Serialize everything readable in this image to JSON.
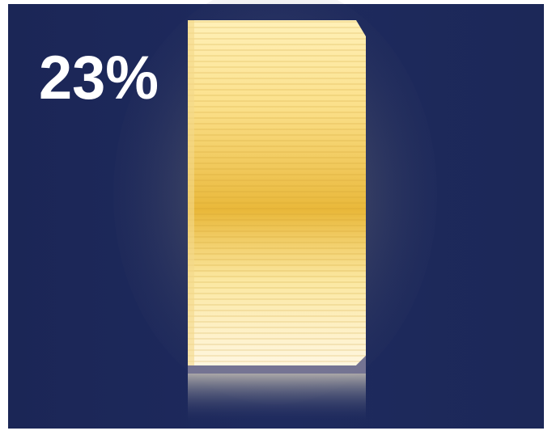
{
  "caption": {
    "text": "23%"
  }
}
